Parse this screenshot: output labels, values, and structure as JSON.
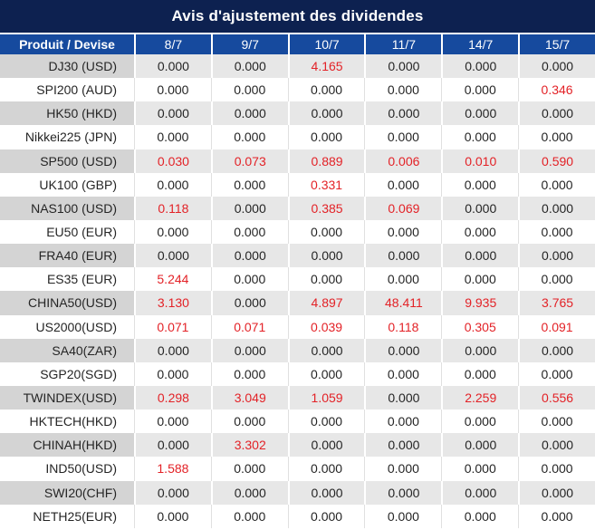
{
  "title": "Avis d'ajustement des dividendes",
  "table": {
    "product_header": "Produit / Devise",
    "date_headers": [
      "8/7",
      "9/7",
      "10/7",
      "11/7",
      "14/7",
      "15/7"
    ],
    "rows": [
      {
        "product": "DJ30 (USD)",
        "values": [
          "0.000",
          "0.000",
          "4.165",
          "0.000",
          "0.000",
          "0.000"
        ]
      },
      {
        "product": "SPI200 (AUD)",
        "values": [
          "0.000",
          "0.000",
          "0.000",
          "0.000",
          "0.000",
          "0.346"
        ]
      },
      {
        "product": "HK50 (HKD)",
        "values": [
          "0.000",
          "0.000",
          "0.000",
          "0.000",
          "0.000",
          "0.000"
        ]
      },
      {
        "product": "Nikkei225 (JPN)",
        "values": [
          "0.000",
          "0.000",
          "0.000",
          "0.000",
          "0.000",
          "0.000"
        ]
      },
      {
        "product": "SP500 (USD)",
        "values": [
          "0.030",
          "0.073",
          "0.889",
          "0.006",
          "0.010",
          "0.590"
        ]
      },
      {
        "product": "UK100 (GBP)",
        "values": [
          "0.000",
          "0.000",
          "0.331",
          "0.000",
          "0.000",
          "0.000"
        ]
      },
      {
        "product": "NAS100 (USD)",
        "values": [
          "0.118",
          "0.000",
          "0.385",
          "0.069",
          "0.000",
          "0.000"
        ]
      },
      {
        "product": "EU50 (EUR)",
        "values": [
          "0.000",
          "0.000",
          "0.000",
          "0.000",
          "0.000",
          "0.000"
        ]
      },
      {
        "product": "FRA40 (EUR)",
        "values": [
          "0.000",
          "0.000",
          "0.000",
          "0.000",
          "0.000",
          "0.000"
        ]
      },
      {
        "product": "ES35 (EUR)",
        "values": [
          "5.244",
          "0.000",
          "0.000",
          "0.000",
          "0.000",
          "0.000"
        ]
      },
      {
        "product": "CHINA50(USD)",
        "values": [
          "3.130",
          "0.000",
          "4.897",
          "48.411",
          "9.935",
          "3.765"
        ]
      },
      {
        "product": "US2000(USD)",
        "values": [
          "0.071",
          "0.071",
          "0.039",
          "0.118",
          "0.305",
          "0.091"
        ]
      },
      {
        "product": "SA40(ZAR)",
        "values": [
          "0.000",
          "0.000",
          "0.000",
          "0.000",
          "0.000",
          "0.000"
        ]
      },
      {
        "product": "SGP20(SGD)",
        "values": [
          "0.000",
          "0.000",
          "0.000",
          "0.000",
          "0.000",
          "0.000"
        ]
      },
      {
        "product": "TWINDEX(USD)",
        "values": [
          "0.298",
          "3.049",
          "1.059",
          "0.000",
          "2.259",
          "0.556"
        ]
      },
      {
        "product": "HKTECH(HKD)",
        "values": [
          "0.000",
          "0.000",
          "0.000",
          "0.000",
          "0.000",
          "0.000"
        ]
      },
      {
        "product": "CHINAH(HKD)",
        "values": [
          "0.000",
          "3.302",
          "0.000",
          "0.000",
          "0.000",
          "0.000"
        ]
      },
      {
        "product": "IND50(USD)",
        "values": [
          "1.588",
          "0.000",
          "0.000",
          "0.000",
          "0.000",
          "0.000"
        ]
      },
      {
        "product": "SWI20(CHF)",
        "values": [
          "0.000",
          "0.000",
          "0.000",
          "0.000",
          "0.000",
          "0.000"
        ]
      },
      {
        "product": "NETH25(EUR)",
        "values": [
          "0.000",
          "0.000",
          "0.000",
          "0.000",
          "0.000",
          "0.000"
        ]
      }
    ]
  },
  "colors": {
    "title_bg": "#0d2150",
    "header_bg": "#164a9e",
    "stripe_label_bg": "#d4d4d4",
    "stripe_cell_bg": "#e7e7e7",
    "value_text": "#252525",
    "nonzero_red": "#e32227"
  }
}
